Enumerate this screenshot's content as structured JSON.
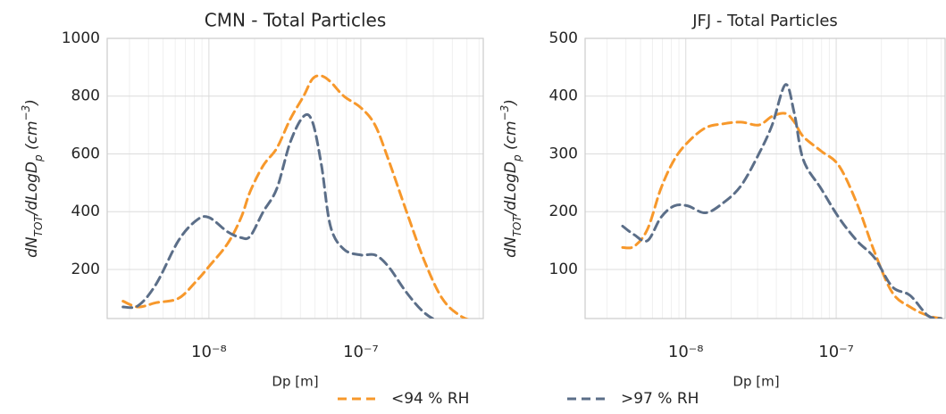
{
  "chart_data": [
    {
      "type": "line",
      "title": "CMN - Total Particles",
      "xlabel": "Dp [m]",
      "ylabel": [
        "dN",
        "TOT",
        "/dLogD",
        "p",
        " (cm",
        "−3",
        ")"
      ],
      "xscale": "log",
      "grid": true,
      "legend": "below",
      "xlim": [
        2.14e-09,
        6.4e-07
      ],
      "ylim": [
        30,
        1000
      ],
      "xticks": [
        {
          "value": 1e-08,
          "label": "10⁻⁸"
        },
        {
          "value": 1e-07,
          "label": "10⁻⁷"
        }
      ],
      "xminor": [
        3e-09,
        4e-09,
        5e-09,
        6e-09,
        7e-09,
        8e-09,
        9e-09,
        2e-08,
        3e-08,
        4e-08,
        5e-08,
        6e-08,
        7e-08,
        8e-08,
        9e-08,
        2e-07,
        3e-07,
        4e-07,
        5e-07,
        6e-07
      ],
      "yticks": [
        200,
        400,
        600,
        800,
        1000
      ],
      "x": [
        2.72e-09,
        3.43e-09,
        4.5e-09,
        6.31e-09,
        8.28e-09,
        1e-08,
        1.33e-08,
        1.63e-08,
        1.87e-08,
        2.28e-08,
        2.8e-08,
        3.43e-08,
        4.2e-08,
        4.81e-08,
        5.51e-08,
        6.31e-08,
        7.73e-08,
        1e-07,
        1.24e-07,
        1.52e-07,
        2e-07,
        2.62e-07,
        3.43e-07,
        4.5e-07,
        5.9e-07
      ],
      "series": [
        {
          "name": "<94 % RH",
          "color": "#f7982b",
          "values": [
            90,
            70,
            85,
            100,
            160,
            210,
            290,
            380,
            470,
            560,
            620,
            720,
            800,
            860,
            870,
            850,
            800,
            760,
            700,
            580,
            400,
            230,
            100,
            40,
            15
          ]
        },
        {
          "name": ">97 % RH",
          "color": "#5b6e88",
          "values": [
            70,
            75,
            150,
            300,
            370,
            380,
            330,
            310,
            315,
            400,
            480,
            640,
            730,
            710,
            560,
            350,
            270,
            250,
            250,
            210,
            120,
            50,
            15,
            5,
            5
          ]
        }
      ]
    },
    {
      "type": "line",
      "title": "JFJ - Total Particles",
      "xlabel": "Dp [m]",
      "ylabel": [
        "dN",
        "TOT",
        "/dLogD",
        "p",
        " (cm",
        "−3",
        ")"
      ],
      "xscale": "log",
      "grid": true,
      "xlim": [
        2.14e-09,
        5.3e-07
      ],
      "ylim": [
        15,
        500
      ],
      "xticks": [
        {
          "value": 1e-08,
          "label": "10⁻⁸"
        },
        {
          "value": 1e-07,
          "label": "10⁻⁷"
        }
      ],
      "xminor": [
        3e-09,
        4e-09,
        5e-09,
        6e-09,
        7e-09,
        8e-09,
        9e-09,
        2e-08,
        3e-08,
        4e-08,
        5e-08,
        6e-08,
        7e-08,
        8e-08,
        9e-08,
        2e-07,
        3e-07,
        4e-07,
        5e-07
      ],
      "yticks": [
        100,
        200,
        300,
        400,
        500
      ],
      "x": [
        3.8e-09,
        4.54e-09,
        5.57e-09,
        6.83e-09,
        8.38e-09,
        1.03e-08,
        1.35e-08,
        1.77e-08,
        2.33e-08,
        3.06e-08,
        3.75e-08,
        4.6e-08,
        5.27e-08,
        6.04e-08,
        7.93e-08,
        1.04e-07,
        1.37e-07,
        1.8e-07,
        2.36e-07,
        3.1e-07,
        4.07e-07,
        4.99e-07
      ],
      "series": [
        {
          "name": "<94 % RH",
          "color": "#f7982b",
          "values": [
            138,
            140,
            170,
            240,
            290,
            320,
            345,
            352,
            355,
            350,
            365,
            370,
            355,
            330,
            305,
            280,
            215,
            130,
            60,
            35,
            20,
            15
          ]
        },
        {
          "name": ">97 % RH",
          "color": "#5b6e88",
          "values": [
            175,
            160,
            150,
            190,
            210,
            210,
            198,
            215,
            245,
            300,
            350,
            420,
            370,
            290,
            240,
            190,
            150,
            120,
            70,
            55,
            20,
            15
          ]
        }
      ]
    }
  ]
}
